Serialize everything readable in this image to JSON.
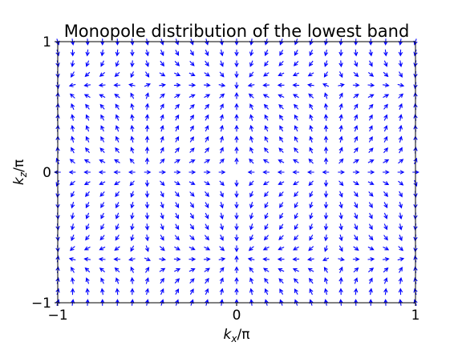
{
  "chart_data": {
    "type": "quiver",
    "title": "Monopole distribution of the lowest band",
    "xlabel": {
      "base": "k",
      "sub": "x",
      "suffix": "/π"
    },
    "ylabel": {
      "base": "k",
      "sub": "z",
      "suffix": "/π"
    },
    "xlim": [
      -1,
      1
    ],
    "ylim": [
      -1,
      1
    ],
    "xticks": [
      {
        "value": -1,
        "label": "−1"
      },
      {
        "value": 0,
        "label": "0"
      },
      {
        "value": 1,
        "label": "1"
      }
    ],
    "yticks": [
      {
        "value": -1,
        "label": "−1"
      },
      {
        "value": 0,
        "label": "0"
      },
      {
        "value": 1,
        "label": "1"
      }
    ],
    "grid": false,
    "arrow_color": "#0000ff",
    "grid_points": {
      "nx": 25,
      "nz": 25
    },
    "field_sources": [
      {
        "kx": -0.5,
        "kz": 0.0,
        "strength": 1
      },
      {
        "kx": 0.5,
        "kz": 0.0,
        "strength": 1
      },
      {
        "kx": 0.0,
        "kz": 0.65,
        "strength": -1
      },
      {
        "kx": 0.0,
        "kz": -0.65,
        "strength": -1
      },
      {
        "kx": -1.0,
        "kz": 0.65,
        "strength": -1
      },
      {
        "kx": -1.0,
        "kz": -0.65,
        "strength": -1
      },
      {
        "kx": 1.0,
        "kz": 0.65,
        "strength": -1
      },
      {
        "kx": 1.0,
        "kz": -0.65,
        "strength": -1
      }
    ]
  }
}
